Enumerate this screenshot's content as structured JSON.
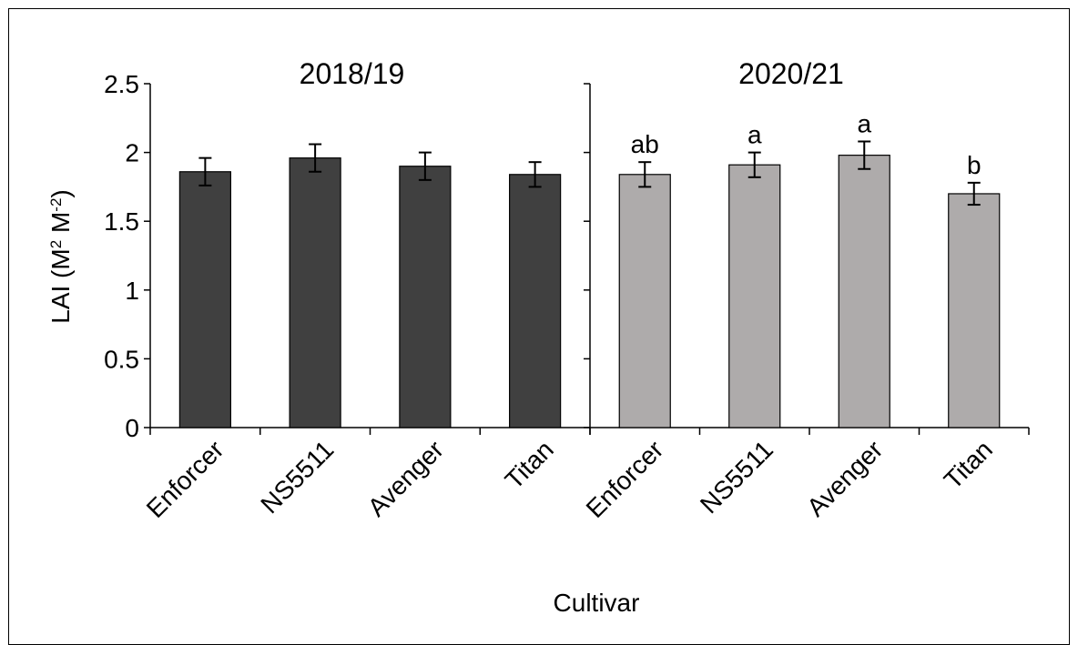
{
  "chart_data": [
    {
      "type": "bar",
      "title": "2018/19",
      "categories": [
        "Enforcer",
        "NS5511",
        "Avenger",
        "Titan"
      ],
      "values": [
        1.86,
        1.96,
        1.9,
        1.84
      ],
      "errors": [
        0.1,
        0.1,
        0.1,
        0.09
      ],
      "letters": [
        "",
        "",
        "",
        ""
      ],
      "ylabel_main": "LAI",
      "ylabel_unit_a": "(M",
      "ylabel_unit_b": " M",
      "ylabel_sup_a": "2",
      "ylabel_sup_b": "-2",
      "ylabel_close": ")",
      "yticks": [
        "0",
        "0.5",
        "1",
        "1.5",
        "2",
        "2.5"
      ],
      "ylim": [
        0,
        2.5
      ],
      "bar_color": "#404040",
      "grid": false
    },
    {
      "type": "bar",
      "title": "2020/21",
      "categories": [
        "Enforcer",
        "NS5511",
        "Avenger",
        "Titan"
      ],
      "values": [
        1.84,
        1.91,
        1.98,
        1.7
      ],
      "errors": [
        0.09,
        0.09,
        0.1,
        0.08
      ],
      "letters": [
        "ab",
        "a",
        "a",
        "b"
      ],
      "ylim": [
        0,
        2.5
      ],
      "bar_color": "#aeabab",
      "grid": false
    }
  ],
  "xlabel": "Cultivar"
}
